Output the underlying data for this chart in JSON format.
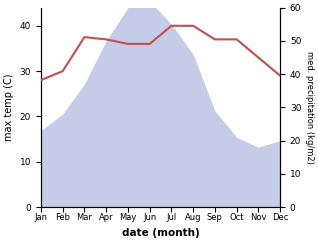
{
  "months": [
    "Jan",
    "Feb",
    "Mar",
    "Apr",
    "May",
    "Jun",
    "Jul",
    "Aug",
    "Sep",
    "Oct",
    "Nov",
    "Dec"
  ],
  "x": [
    1,
    2,
    3,
    4,
    5,
    6,
    7,
    8,
    9,
    10,
    11,
    12
  ],
  "temperature": [
    28,
    30,
    37.5,
    37,
    36,
    36,
    40,
    40,
    37,
    37,
    33,
    29
  ],
  "precipitation": [
    23,
    28,
    37,
    50,
    60,
    62,
    55,
    46,
    29,
    21,
    18,
    20
  ],
  "temp_color": "#c0504d",
  "precip_fill_color": "#c5cce8",
  "temp_ylim": [
    0,
    44
  ],
  "precip_ylim": [
    0,
    60
  ],
  "temp_yticks": [
    0,
    10,
    20,
    30,
    40
  ],
  "precip_yticks": [
    0,
    10,
    20,
    30,
    40,
    50,
    60
  ],
  "xlabel": "date (month)",
  "ylabel_left": "max temp (C)",
  "ylabel_right": "med. precipitation (kg/m2)",
  "background_color": "#ffffff"
}
